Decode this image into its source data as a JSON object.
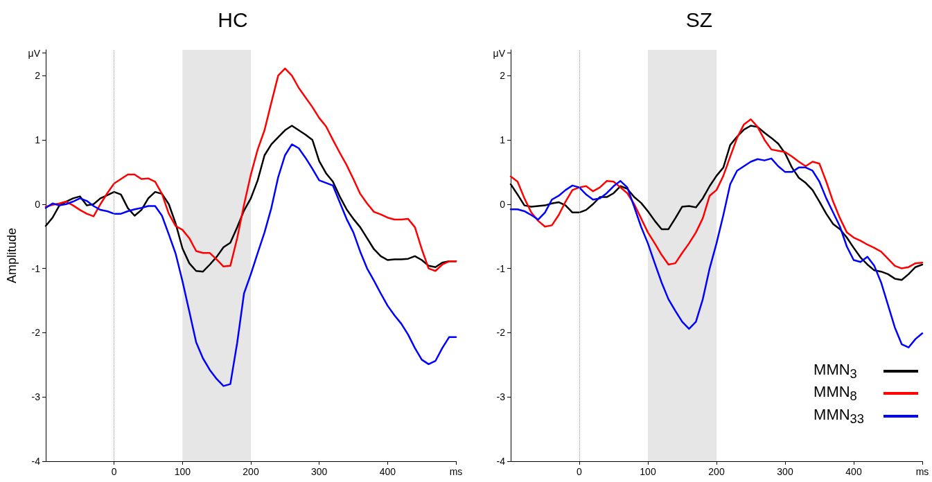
{
  "chart_data": [
    {
      "type": "line",
      "title": "HC",
      "ylabel": "Amplitude",
      "legend": false,
      "grid": false,
      "x": [
        -100,
        -90,
        -80,
        -70,
        -60,
        -50,
        -40,
        -30,
        -20,
        -10,
        0,
        10,
        20,
        30,
        40,
        50,
        60,
        70,
        80,
        90,
        100,
        110,
        120,
        130,
        140,
        150,
        160,
        170,
        180,
        190,
        200,
        210,
        220,
        230,
        240,
        250,
        260,
        270,
        280,
        290,
        300,
        310,
        320,
        330,
        340,
        350,
        360,
        370,
        380,
        390,
        400,
        410,
        420,
        430,
        440,
        450,
        460,
        470,
        480,
        490,
        500
      ],
      "xlim": [
        -100,
        500
      ],
      "xticks": [
        0,
        100,
        200,
        300,
        400,
        {
          "value": 500,
          "label": "ms"
        }
      ],
      "ylim": [
        -4,
        2.4
      ],
      "yticks": [
        -4,
        -3,
        -2,
        -1,
        0,
        1,
        2,
        {
          "value": 2.35,
          "label": "μV"
        }
      ],
      "ref_lines": [
        {
          "axis": "x",
          "value": 0,
          "color": "#999999",
          "line_style": "dotted"
        }
      ],
      "bands": [
        {
          "axis": "x",
          "from": 100,
          "to": 200,
          "color": "#e6e6e6"
        }
      ],
      "series": [
        {
          "color": "#000000",
          "values": [
            -0.34,
            -0.21,
            -0.02,
            0.04,
            0.09,
            0.12,
            -0.02,
            0,
            0.09,
            0.14,
            0.19,
            0.15,
            -0.06,
            -0.18,
            -0.09,
            0.09,
            0.19,
            0.16,
            0,
            -0.3,
            -0.69,
            -0.92,
            -1.04,
            -1.05,
            -0.94,
            -0.82,
            -0.67,
            -0.6,
            -0.36,
            -0.1,
            0.09,
            0.37,
            0.76,
            0.93,
            1.04,
            1.15,
            1.22,
            1.15,
            1.08,
            1.0,
            0.67,
            0.48,
            0.35,
            0.12,
            -0.08,
            -0.23,
            -0.36,
            -0.53,
            -0.7,
            -0.81,
            -0.87,
            -0.86,
            -0.86,
            -0.85,
            -0.81,
            -0.87,
            -0.96,
            -0.98,
            -0.91,
            -0.89,
            -0.89
          ]
        },
        {
          "color": "#ff0000",
          "values": [
            -0.04,
            -0.01,
            0.01,
            0.04,
            -0.02,
            -0.09,
            -0.15,
            -0.19,
            0,
            0.17,
            0.32,
            0.39,
            0.46,
            0.46,
            0.39,
            0.4,
            0.35,
            0.16,
            -0.15,
            -0.34,
            -0.4,
            -0.53,
            -0.73,
            -0.76,
            -0.76,
            -0.86,
            -0.97,
            -0.96,
            -0.53,
            -0.01,
            0.46,
            0.85,
            1.15,
            1.58,
            2.0,
            2.11,
            2.0,
            1.81,
            1.66,
            1.51,
            1.34,
            1.21,
            1.0,
            0.8,
            0.61,
            0.39,
            0.16,
            0.01,
            -0.12,
            -0.16,
            -0.21,
            -0.24,
            -0.24,
            -0.23,
            -0.36,
            -0.7,
            -1.0,
            -1.04,
            -0.94,
            -0.89,
            -0.89
          ]
        },
        {
          "color": "#0000ff",
          "values": [
            -0.06,
            0.01,
            -0.02,
            0,
            0.04,
            0.09,
            0.05,
            -0.03,
            -0.09,
            -0.11,
            -0.15,
            -0.15,
            -0.11,
            -0.08,
            -0.06,
            -0.03,
            -0.03,
            -0.18,
            -0.47,
            -0.77,
            -1.2,
            -1.67,
            -2.15,
            -2.4,
            -2.58,
            -2.72,
            -2.83,
            -2.8,
            -2.16,
            -1.39,
            -1.09,
            -0.76,
            -0.44,
            -0.06,
            0.42,
            0.76,
            0.93,
            0.87,
            0.72,
            0.55,
            0.37,
            0.33,
            0.29,
            0.03,
            -0.23,
            -0.44,
            -0.74,
            -1.0,
            -1.19,
            -1.39,
            -1.58,
            -1.73,
            -1.86,
            -2.03,
            -2.24,
            -2.42,
            -2.49,
            -2.44,
            -2.24,
            -2.07,
            -2.07
          ]
        }
      ]
    },
    {
      "type": "line",
      "title": "SZ",
      "legend": "bottom right",
      "grid": false,
      "x": [
        -100,
        -90,
        -80,
        -70,
        -60,
        -50,
        -40,
        -30,
        -20,
        -10,
        0,
        10,
        20,
        30,
        40,
        50,
        60,
        70,
        80,
        90,
        100,
        110,
        120,
        130,
        140,
        150,
        160,
        170,
        180,
        190,
        200,
        210,
        220,
        230,
        240,
        250,
        260,
        270,
        280,
        290,
        300,
        310,
        320,
        330,
        340,
        350,
        360,
        370,
        380,
        390,
        400,
        410,
        420,
        430,
        440,
        450,
        460,
        470,
        480,
        490,
        500
      ],
      "xlim": [
        -100,
        500
      ],
      "xticks": [
        0,
        100,
        200,
        300,
        400,
        {
          "value": 500,
          "label": "ms"
        }
      ],
      "ylim": [
        -4,
        2.4
      ],
      "yticks": [
        -4,
        -3,
        -2,
        -1,
        0,
        1,
        2,
        {
          "value": 2.35,
          "label": "μV"
        }
      ],
      "ref_lines": [
        {
          "axis": "x",
          "value": 0,
          "color": "#999999",
          "line_style": "dotted"
        }
      ],
      "bands": [
        {
          "axis": "x",
          "from": 100,
          "to": 200,
          "color": "#e6e6e6"
        }
      ],
      "series": [
        {
          "name": "MMN$_{3}$",
          "color": "#000000",
          "values": [
            0.31,
            0.15,
            -0.02,
            -0.04,
            -0.03,
            -0.02,
            0.01,
            0.03,
            -0.02,
            -0.13,
            -0.13,
            -0.09,
            0,
            0.11,
            0.11,
            0.17,
            0.28,
            0.24,
            0.11,
            0.02,
            -0.11,
            -0.26,
            -0.39,
            -0.39,
            -0.22,
            -0.04,
            -0.03,
            -0.05,
            0.09,
            0.28,
            0.44,
            0.57,
            0.92,
            1.05,
            1.16,
            1.22,
            1.2,
            1.11,
            1.03,
            0.94,
            0.79,
            0.57,
            0.41,
            0.33,
            0.22,
            0.04,
            -0.15,
            -0.31,
            -0.39,
            -0.52,
            -0.68,
            -0.83,
            -0.94,
            -1.03,
            -1.05,
            -1.09,
            -1.16,
            -1.18,
            -1.09,
            -0.98,
            -0.94
          ]
        },
        {
          "name": "MMN$_{8}$",
          "color": "#ff0000",
          "values": [
            0.43,
            0.35,
            0.09,
            -0.13,
            -0.26,
            -0.35,
            -0.33,
            -0.17,
            0.04,
            0.22,
            0.26,
            0.28,
            0.2,
            0.26,
            0.36,
            0.35,
            0.26,
            0.17,
            0,
            -0.22,
            -0.44,
            -0.61,
            -0.79,
            -0.94,
            -0.92,
            -0.76,
            -0.61,
            -0.44,
            -0.22,
            0.13,
            0.22,
            0.44,
            0.74,
            1.03,
            1.24,
            1.32,
            1.2,
            1.0,
            0.85,
            0.83,
            0.81,
            0.74,
            0.66,
            0.59,
            0.66,
            0.63,
            0.35,
            0.04,
            -0.22,
            -0.44,
            -0.52,
            -0.57,
            -0.63,
            -0.68,
            -0.74,
            -0.85,
            -0.96,
            -1.0,
            -0.98,
            -0.92,
            -0.91
          ]
        },
        {
          "name": "MMN$_{33}$",
          "color": "#0000ff",
          "values": [
            -0.08,
            -0.08,
            -0.11,
            -0.17,
            -0.24,
            -0.13,
            0.07,
            0.13,
            0.22,
            0.29,
            0.26,
            0.15,
            0.07,
            0.09,
            0.17,
            0.28,
            0.36,
            0.26,
            -0.04,
            -0.35,
            -0.61,
            -0.92,
            -1.22,
            -1.48,
            -1.66,
            -1.83,
            -1.94,
            -1.83,
            -1.48,
            -1.0,
            -0.61,
            -0.17,
            0.31,
            0.52,
            0.59,
            0.66,
            0.7,
            0.68,
            0.71,
            0.59,
            0.5,
            0.5,
            0.57,
            0.57,
            0.52,
            0.35,
            0.09,
            -0.13,
            -0.35,
            -0.66,
            -0.87,
            -0.9,
            -0.82,
            -0.96,
            -1.22,
            -1.57,
            -1.92,
            -2.18,
            -2.23,
            -2.1,
            -2.01
          ]
        }
      ]
    }
  ]
}
